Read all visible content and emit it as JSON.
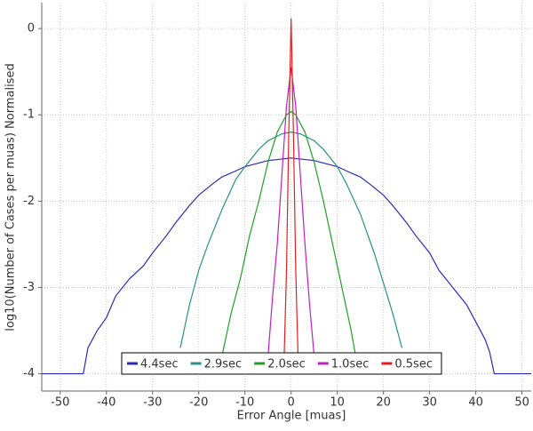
{
  "chart_data": {
    "type": "line",
    "x_label": "Error Angle [muas]",
    "y_label": "log10(Number of Cases per muas) Normalised",
    "xlim": [
      -54,
      52
    ],
    "ylim": [
      -4.2,
      0.3
    ],
    "xticks": [
      -50,
      -40,
      -30,
      -20,
      -10,
      0,
      10,
      20,
      30,
      40,
      50
    ],
    "yticks": [
      0,
      -1,
      -2,
      -3,
      -4
    ],
    "grid": true,
    "legend": "bottom",
    "series": [
      {
        "name": "4.4sec",
        "color": "#2a2ab8",
        "x": [
          -54,
          -45,
          -44,
          -42,
          -40,
          -38,
          -35,
          -32,
          -30,
          -27,
          -25,
          -22,
          -20,
          -17,
          -15,
          -12,
          -10,
          -5,
          0,
          5,
          10,
          12,
          15,
          17,
          20,
          22,
          25,
          27,
          30,
          32,
          35,
          38,
          40,
          42,
          43,
          44,
          52
        ],
        "values": [
          -4,
          -4,
          -3.7,
          -3.5,
          -3.35,
          -3.1,
          -2.9,
          -2.75,
          -2.6,
          -2.4,
          -2.25,
          -2.05,
          -1.93,
          -1.8,
          -1.72,
          -1.65,
          -1.6,
          -1.53,
          -1.5,
          -1.53,
          -1.6,
          -1.65,
          -1.72,
          -1.8,
          -1.93,
          -2.05,
          -2.25,
          -2.4,
          -2.6,
          -2.8,
          -3.0,
          -3.2,
          -3.4,
          -3.6,
          -3.75,
          -4,
          -4
        ]
      },
      {
        "name": "2.9sec",
        "color": "#2a8f8f",
        "x": [
          -24,
          -22,
          -20,
          -18,
          -15,
          -12,
          -10,
          -7,
          -5,
          -2,
          0,
          2,
          5,
          7,
          10,
          12,
          15,
          18,
          20,
          22,
          24
        ],
        "values": [
          -3.7,
          -3.2,
          -2.8,
          -2.5,
          -2.1,
          -1.75,
          -1.6,
          -1.4,
          -1.3,
          -1.22,
          -1.2,
          -1.22,
          -1.3,
          -1.4,
          -1.6,
          -1.8,
          -2.15,
          -2.6,
          -2.95,
          -3.3,
          -3.7
        ]
      },
      {
        "name": "2.0sec",
        "color": "#22a022",
        "x": [
          -15,
          -13,
          -11,
          -9,
          -7,
          -5,
          -3,
          -1,
          0,
          1,
          3,
          5,
          7,
          9,
          11,
          13,
          14
        ],
        "values": [
          -3.8,
          -3.3,
          -2.9,
          -2.4,
          -2.0,
          -1.55,
          -1.2,
          -1.0,
          -0.96,
          -1.0,
          -1.2,
          -1.55,
          -2.0,
          -2.5,
          -3.0,
          -3.5,
          -3.8
        ]
      },
      {
        "name": "1.0sec",
        "color": "#c020c0",
        "x": [
          -5,
          -4,
          -3,
          -2,
          -1,
          0,
          1,
          2,
          3,
          4,
          5
        ],
        "values": [
          -3.8,
          -3.1,
          -2.5,
          -1.7,
          -0.9,
          -0.45,
          -0.9,
          -1.7,
          -2.5,
          -3.2,
          -3.8
        ]
      },
      {
        "name": "0.5sec",
        "color": "#e02020",
        "x": [
          -1.5,
          -1,
          -0.5,
          0,
          0.5,
          1,
          1.5
        ],
        "values": [
          -3.8,
          -2.8,
          -1.2,
          0.12,
          -1.2,
          -2.8,
          -3.8
        ]
      }
    ]
  }
}
